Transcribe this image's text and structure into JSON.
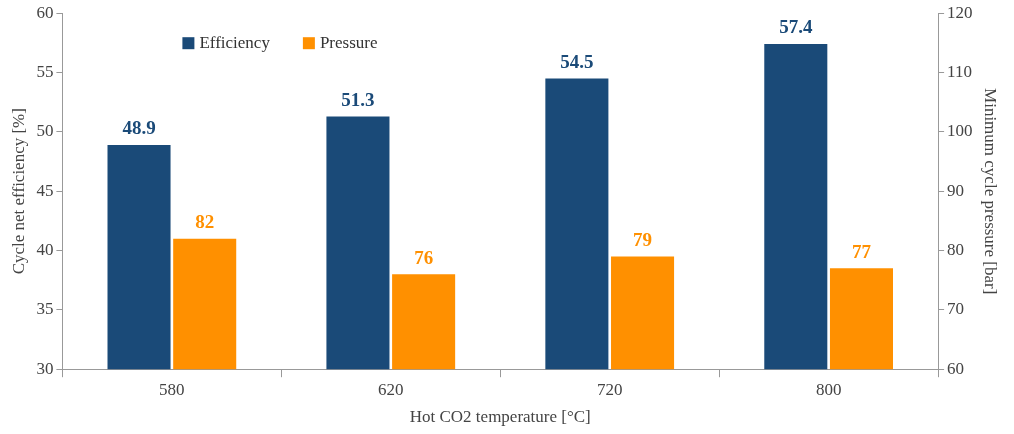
{
  "chart_data": {
    "type": "bar",
    "xlabel": "Hot CO2 temperature [°C]",
    "ylabel": "Cycle net efficiency [%]",
    "y2label": "Minimum cycle pressure [bar]",
    "categories": [
      "580",
      "620",
      "720",
      "800"
    ],
    "series": [
      {
        "name": "Efficiency",
        "color": "#1a4a78",
        "values": [
          48.9,
          51.3,
          54.5,
          57.4
        ]
      },
      {
        "name": "Pressure",
        "color": "#ff9000",
        "values": [
          82,
          76,
          79,
          77
        ],
        "axis": "y2"
      }
    ],
    "ylim": [
      30,
      60
    ],
    "yticks": [
      30,
      35,
      40,
      45,
      50,
      55,
      60
    ],
    "y2lim": [
      60,
      120
    ],
    "y2ticks": [
      60,
      70,
      80,
      90,
      100,
      110,
      120
    ],
    "data_labels": true,
    "legend": "top left",
    "grid": false
  }
}
